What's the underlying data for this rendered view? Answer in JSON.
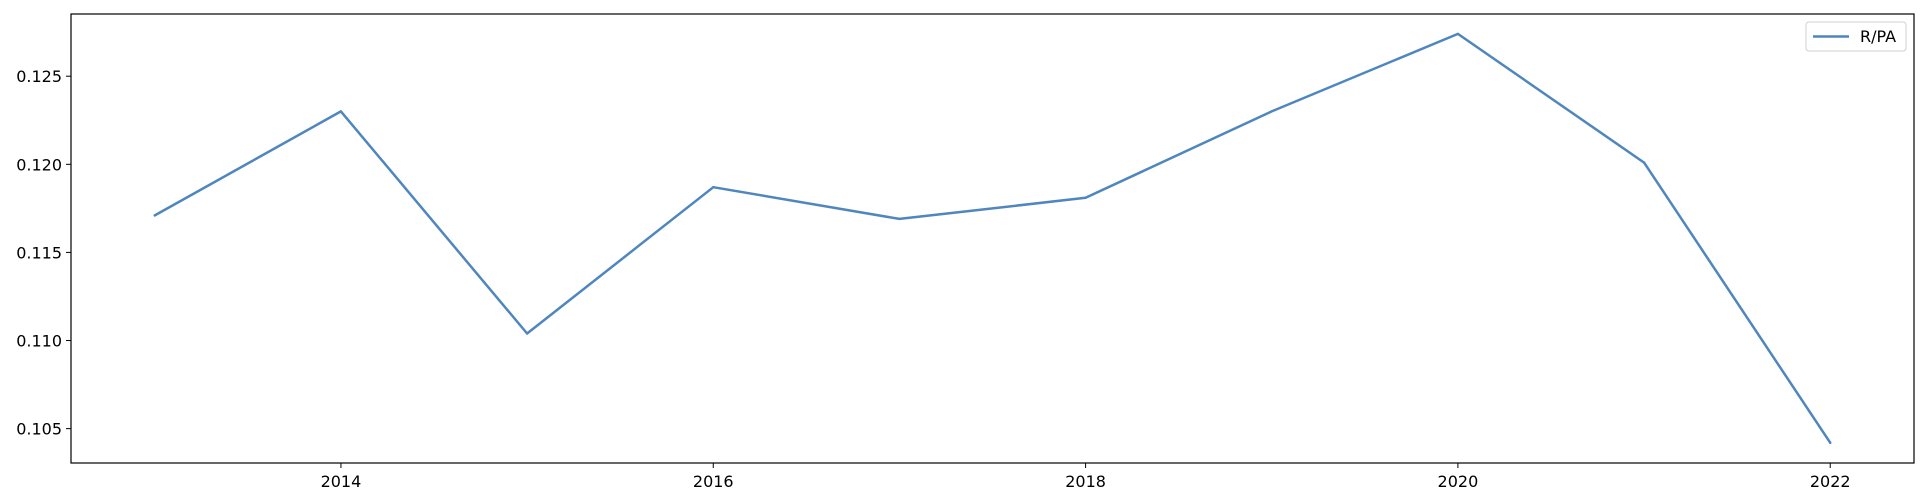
{
  "chart_data": {
    "type": "line",
    "title": "",
    "xlabel": "",
    "ylabel": "",
    "x": [
      2013,
      2014,
      2015,
      2016,
      2017,
      2018,
      2019,
      2020,
      2021,
      2022
    ],
    "series": [
      {
        "name": "R/PA",
        "color": "#4f86be",
        "values": [
          0.1171,
          0.123,
          0.1104,
          0.1187,
          0.1169,
          0.1181,
          0.123,
          0.1274,
          0.1201,
          0.1042
        ]
      }
    ],
    "xticks": [
      2014,
      2016,
      2018,
      2020,
      2022
    ],
    "xtick_labels": [
      "2014",
      "2016",
      "2018",
      "2020",
      "2022"
    ],
    "yticks": [
      0.105,
      0.11,
      0.115,
      0.12,
      0.125
    ],
    "ytick_labels": [
      "0.105",
      "0.110",
      "0.115",
      "0.120",
      "0.125"
    ],
    "xlim": [
      2012.55,
      2022.45
    ],
    "ylim": [
      0.10305,
      0.12853
    ],
    "grid": false,
    "legend": {
      "position": "top-right"
    }
  }
}
